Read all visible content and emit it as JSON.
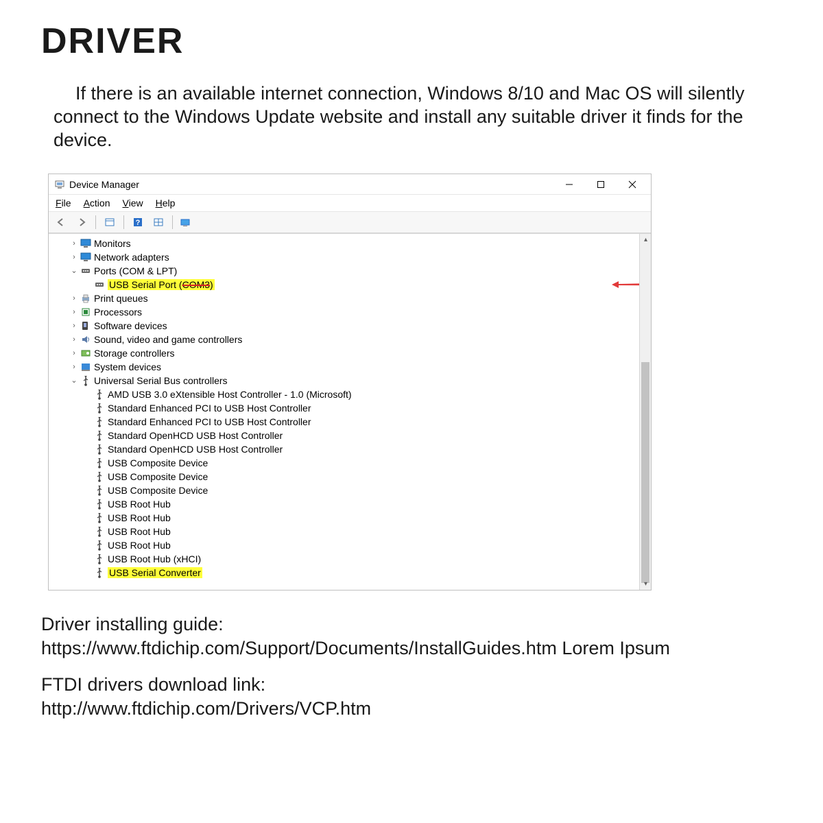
{
  "page": {
    "heading": "DRIVER",
    "intro": "If there is an available internet connection, Windows 8/10  and Mac OS will silently connect to the Windows Update website and install any suitable driver it finds for the device."
  },
  "window": {
    "title": "Device Manager",
    "menus": {
      "file": "File",
      "action": "Action",
      "view": "View",
      "help": "Help"
    },
    "tree": {
      "items": [
        {
          "indent": 1,
          "expander": ">",
          "icon": "monitor",
          "label": "Monitors"
        },
        {
          "indent": 1,
          "expander": ">",
          "icon": "monitor",
          "label": "Network adapters"
        },
        {
          "indent": 1,
          "expander": "v",
          "icon": "port",
          "label": "Ports (COM & LPT)"
        },
        {
          "indent": 2,
          "expander": "",
          "icon": "port",
          "label": "USB Serial Port (COM3)",
          "highlight": true,
          "strike_tail": true,
          "annotate_arrow": true
        },
        {
          "indent": 1,
          "expander": ">",
          "icon": "printer",
          "label": "Print queues"
        },
        {
          "indent": 1,
          "expander": ">",
          "icon": "cpu",
          "label": "Processors"
        },
        {
          "indent": 1,
          "expander": ">",
          "icon": "soft",
          "label": "Software devices"
        },
        {
          "indent": 1,
          "expander": ">",
          "icon": "sound",
          "label": "Sound, video and game controllers"
        },
        {
          "indent": 1,
          "expander": ">",
          "icon": "storage",
          "label": "Storage controllers"
        },
        {
          "indent": 1,
          "expander": ">",
          "icon": "system",
          "label": "System devices"
        },
        {
          "indent": 1,
          "expander": "v",
          "icon": "usb",
          "label": "Universal Serial Bus controllers"
        },
        {
          "indent": 2,
          "expander": "",
          "icon": "usb",
          "label": "AMD USB 3.0 eXtensible Host Controller - 1.0 (Microsoft)"
        },
        {
          "indent": 2,
          "expander": "",
          "icon": "usb",
          "label": "Standard Enhanced PCI to USB Host Controller"
        },
        {
          "indent": 2,
          "expander": "",
          "icon": "usb",
          "label": "Standard Enhanced PCI to USB Host Controller"
        },
        {
          "indent": 2,
          "expander": "",
          "icon": "usb",
          "label": "Standard OpenHCD USB Host Controller"
        },
        {
          "indent": 2,
          "expander": "",
          "icon": "usb",
          "label": "Standard OpenHCD USB Host Controller"
        },
        {
          "indent": 2,
          "expander": "",
          "icon": "usb",
          "label": "USB Composite Device"
        },
        {
          "indent": 2,
          "expander": "",
          "icon": "usb",
          "label": "USB Composite Device"
        },
        {
          "indent": 2,
          "expander": "",
          "icon": "usb",
          "label": "USB Composite Device"
        },
        {
          "indent": 2,
          "expander": "",
          "icon": "usb",
          "label": "USB Root Hub"
        },
        {
          "indent": 2,
          "expander": "",
          "icon": "usb",
          "label": "USB Root Hub"
        },
        {
          "indent": 2,
          "expander": "",
          "icon": "usb",
          "label": "USB Root Hub"
        },
        {
          "indent": 2,
          "expander": "",
          "icon": "usb",
          "label": "USB Root Hub"
        },
        {
          "indent": 2,
          "expander": "",
          "icon": "usb",
          "label": "USB Root Hub (xHCI)"
        },
        {
          "indent": 2,
          "expander": "",
          "icon": "usb",
          "label": "USB Serial Converter",
          "highlight": true
        }
      ]
    },
    "scrollbar": {
      "thumb_top_pct": 36,
      "thumb_height_pct": 62
    },
    "annotation": {
      "color": "#e23a3a"
    }
  },
  "footer": {
    "guide_label": "Driver installing guide:",
    "guide_url": "https://www.ftdichip.com/Support/Documents/InstallGuides.htm",
    "guide_tail": "  Lorem Ipsum",
    "dl_label": "FTDI drivers download link:",
    "dl_url": "http://www.ftdichip.com/Drivers/VCP.htm"
  },
  "colors": {
    "window_border": "#bfbfbf",
    "highlight": "#ffff3a",
    "arrow": "#e23a3a"
  }
}
